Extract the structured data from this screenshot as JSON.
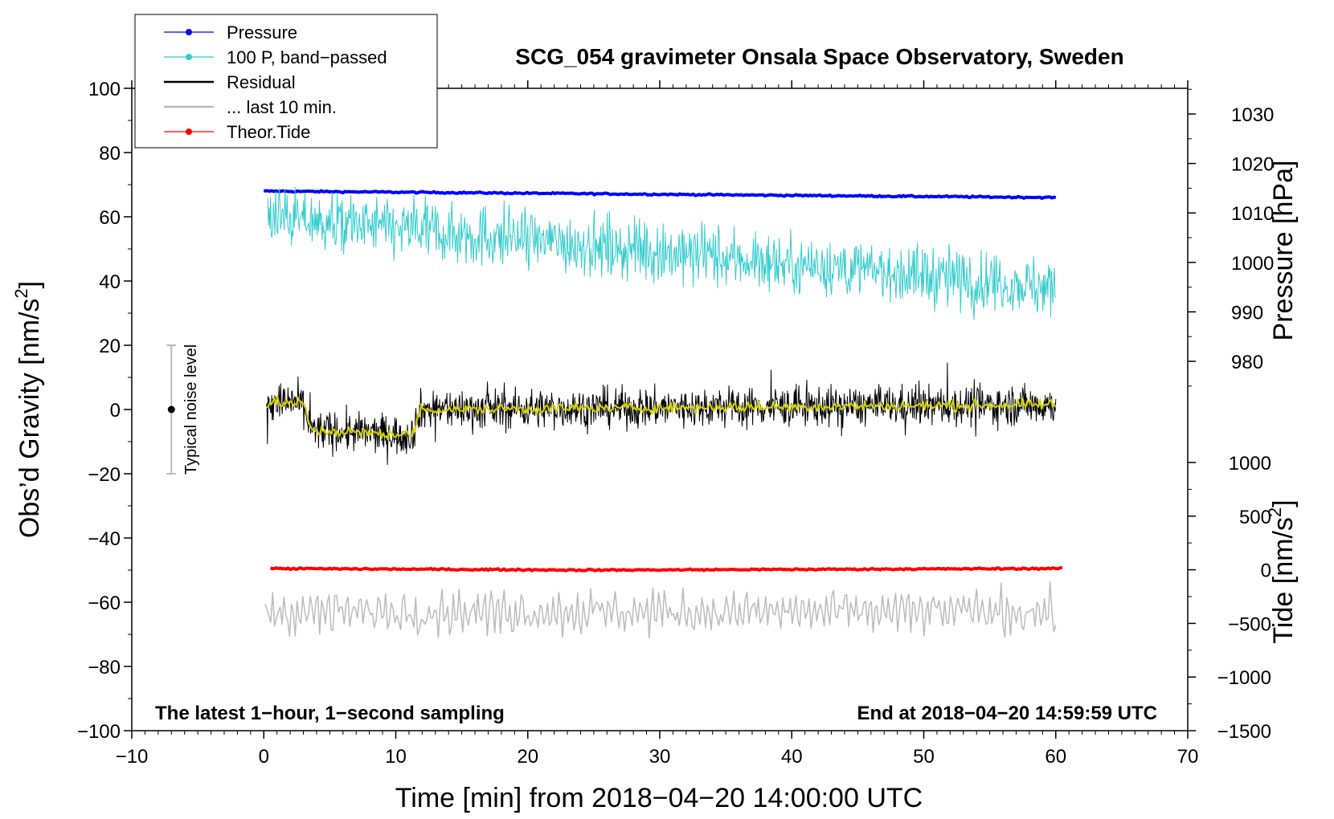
{
  "chart_data": {
    "type": "line",
    "title": "SCG_054 gravimeter Onsala Space Observatory, Sweden",
    "xlabel": "Time [min] from 2018−04−20 14:00:00 UTC",
    "ylabel": "Obs’d Gravity [nm/s²]",
    "ylabel_text": "Obs’d Gravity [nm/s",
    "ylabel_sup": "2",
    "ylabel_close": "]",
    "right_pressure_label": "Pressure [hPa]",
    "right_tide_label_text": "Tide [nm/s",
    "right_tide_label_sup": "2",
    "right_tide_label_close": "]",
    "xlim": [
      -10,
      70
    ],
    "ylim": [
      -100,
      100
    ],
    "x_ticks": [
      -10,
      0,
      10,
      20,
      30,
      40,
      50,
      60,
      70
    ],
    "x_tick_labels": [
      "−10",
      "0",
      "10",
      "20",
      "30",
      "40",
      "50",
      "60",
      "70"
    ],
    "y_ticks": [
      -100,
      -80,
      -60,
      -40,
      -20,
      0,
      20,
      40,
      60,
      80,
      100
    ],
    "y_tick_labels": [
      "−100",
      "−80",
      "−60",
      "−40",
      "−20",
      "0",
      "20",
      "40",
      "60",
      "80",
      "100"
    ],
    "pressure_axis": {
      "ticks": [
        980,
        990,
        1000,
        1010,
        1020,
        1030
      ],
      "tick_labels": [
        "980",
        "990",
        "1000",
        "1010",
        "1020",
        "1030"
      ],
      "map": {
        "pressure": [
          980,
          1030
        ],
        "gravity": [
          15,
          92
        ]
      }
    },
    "tide_axis": {
      "ticks": [
        -1500,
        -1000,
        -500,
        0,
        500,
        1000
      ],
      "tick_labels": [
        "−1500",
        "−1000",
        "−500",
        "0",
        "500",
        "1000"
      ],
      "map": {
        "tide": [
          -1500,
          1000
        ],
        "gravity": [
          -100,
          -16.5
        ]
      }
    },
    "legend": {
      "position": "top-left",
      "entries": [
        {
          "label": "Pressure",
          "color": "#0000ff",
          "marker": true
        },
        {
          "label": "100 P, band−passed",
          "color": "#33cccc",
          "marker": true
        },
        {
          "label": "Residual",
          "color": "#000000",
          "marker": false
        },
        {
          "label": "... last 10 min.",
          "color": "#bbbbbb",
          "marker": false
        },
        {
          "label": "Theor.Tide",
          "color": "#ff0000",
          "marker": true
        }
      ]
    },
    "annotations": {
      "bottom_left": "The latest 1−hour, 1−second sampling",
      "bottom_right": "End at 2018−04−20 14:59:59 UTC",
      "noise_label": "Typical noise level"
    },
    "noise_bar": {
      "x": -7,
      "center": 0,
      "low": -20,
      "high": 20
    },
    "series": [
      {
        "name": "Pressure",
        "color": "#0000ff",
        "width": 4,
        "x": [
          0,
          60
        ],
        "y": [
          68,
          66
        ]
      },
      {
        "name": "100 P, band-passed",
        "color": "#33cccc",
        "width": 1,
        "x_start": 0.3,
        "x_end": 60,
        "trend_start": 60,
        "trend_end": 38,
        "noise_amp": 6
      },
      {
        "name": "Residual",
        "color": "#000000",
        "width": 1,
        "x": [
          0.2,
          3.0,
          3.6,
          11.2,
          11.9,
          60
        ],
        "y": [
          2,
          2,
          -6.5,
          -8,
          0,
          1.5
        ],
        "noise_amp": 5
      },
      {
        "name": "Residual smoothed",
        "color": "#d4d400",
        "width": 2,
        "x": [
          0.2,
          3.0,
          3.6,
          11.2,
          11.9,
          60
        ],
        "y": [
          2,
          2,
          -6.5,
          -8,
          0,
          1.5
        ],
        "noise_amp": 0.8
      },
      {
        "name": "... last 10 min.",
        "color": "#bbbbbb",
        "width": 1.5,
        "x_start": 0.1,
        "x_end": 60,
        "center": -63,
        "noise_amp": 4
      },
      {
        "name": "Theor.Tide",
        "color": "#ff0000",
        "width": 4,
        "x": [
          0.5,
          25,
          60.5
        ],
        "y": [
          -49.5,
          -50,
          -49.5
        ]
      }
    ]
  }
}
